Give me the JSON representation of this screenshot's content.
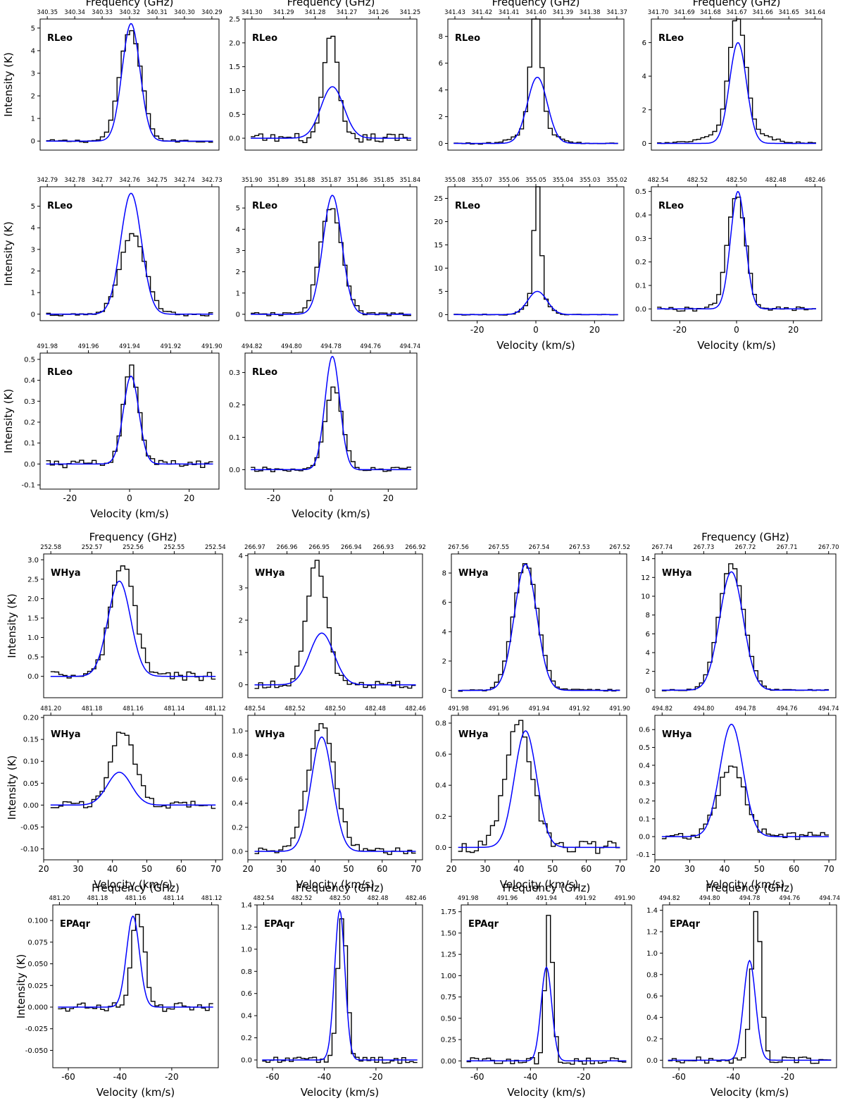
{
  "labels": {
    "freq": "Frequency (GHz)",
    "vel": "Velocity (km/s)",
    "int": "Intensity (K)"
  },
  "colors": {
    "data": "#000000",
    "fit": "#0000ff"
  },
  "chart_data": [
    {
      "type": "line",
      "source": "RLeo",
      "xlim": [
        -30,
        30
      ],
      "ylim": [
        -0.4,
        5.4
      ],
      "yticks": [
        0,
        1,
        2,
        3,
        4,
        5
      ],
      "freq_ticks": [
        "340.35",
        "340.34",
        "340.33",
        "340.32",
        "340.31",
        "340.30",
        "340.29"
      ],
      "freq_title": true,
      "xaxis_label": false,
      "xticks": [],
      "ylabel": true,
      "fit": {
        "amp": 5.2,
        "center": 0.5,
        "sigma": 3.0
      },
      "obs": {
        "amp": 4.9,
        "center": 0.3,
        "sigma": 3.6,
        "noise": 0.06
      }
    },
    {
      "type": "line",
      "source": "RLeo",
      "xlim": [
        -30,
        30
      ],
      "ylim": [
        -0.25,
        2.5
      ],
      "yticks": [
        0.0,
        0.5,
        1.0,
        1.5,
        2.0,
        2.5
      ],
      "freq_ticks": [
        "341.30",
        "341.29",
        "341.28",
        "341.27",
        "341.26",
        "341.25"
      ],
      "freq_title": true,
      "xaxis_label": false,
      "xticks": [],
      "ylabel": false,
      "fit": {
        "amp": 1.08,
        "center": 0.5,
        "sigma": 4.0
      },
      "obs": {
        "amp": 2.2,
        "center": 0.0,
        "sigma": 2.4,
        "noise": 0.1
      }
    },
    {
      "type": "line",
      "source": "RLeo",
      "xlim": [
        -30,
        30
      ],
      "ylim": [
        -0.5,
        9.3
      ],
      "yticks": [
        0,
        2,
        4,
        6,
        8
      ],
      "freq_ticks": [
        "341.43",
        "341.42",
        "341.41",
        "341.40",
        "341.39",
        "341.38",
        "341.37"
      ],
      "freq_title": true,
      "xaxis_label": false,
      "xticks": [],
      "ylabel": false,
      "fit": {
        "amp": 4.95,
        "center": 0.5,
        "sigma": 3.4
      },
      "obs": {
        "amp": 8.8,
        "center": 0.0,
        "sigma": 1.8,
        "wing": 1.3,
        "noise": 0.06
      }
    },
    {
      "type": "line",
      "source": "RLeo",
      "xlim": [
        -30,
        30
      ],
      "ylim": [
        -0.4,
        7.4
      ],
      "yticks": [
        0,
        2,
        4,
        6
      ],
      "freq_ticks": [
        "341.70",
        "341.69",
        "341.68",
        "341.67",
        "341.66",
        "341.65",
        "341.64"
      ],
      "freq_title": true,
      "xaxis_label": false,
      "xticks": [],
      "ylabel": false,
      "fit": {
        "amp": 6.0,
        "center": 0.5,
        "sigma": 3.0
      },
      "obs": {
        "amp": 6.9,
        "center": 0.3,
        "sigma": 2.9,
        "wing": 0.8,
        "noise": 0.06
      }
    },
    {
      "type": "line",
      "source": "RLeo",
      "xlim": [
        -30,
        30
      ],
      "ylim": [
        -0.3,
        5.9
      ],
      "yticks": [
        0,
        1,
        2,
        3,
        4,
        5
      ],
      "freq_ticks": [
        "342.79",
        "342.78",
        "342.77",
        "342.76",
        "342.75",
        "342.74",
        "342.73"
      ],
      "freq_title": false,
      "xaxis_label": false,
      "xticks": [],
      "ylabel": true,
      "fit": {
        "amp": 5.6,
        "center": 0.5,
        "sigma": 3.5
      },
      "obs": {
        "amp": 3.7,
        "center": 1.0,
        "sigma": 4.2,
        "noise": 0.08
      }
    },
    {
      "type": "line",
      "source": "RLeo",
      "xlim": [
        -30,
        30
      ],
      "ylim": [
        -0.3,
        6.0
      ],
      "yticks": [
        0,
        1,
        2,
        3,
        4,
        5
      ],
      "freq_ticks": [
        "351.90",
        "351.89",
        "351.88",
        "351.87",
        "351.86",
        "351.85",
        "351.84"
      ],
      "freq_title": false,
      "xaxis_label": false,
      "xticks": [],
      "ylabel": false,
      "fit": {
        "amp": 5.6,
        "center": 0.5,
        "sigma": 3.3
      },
      "obs": {
        "amp": 5.0,
        "center": 0.0,
        "sigma": 3.9,
        "noise": 0.08
      }
    },
    {
      "type": "line",
      "source": "RLeo",
      "xlim": [
        -30,
        30
      ],
      "ylim": [
        -1.3,
        27.5
      ],
      "yticks": [
        0,
        5,
        10,
        15,
        20,
        25
      ],
      "freq_ticks": [
        "355.08",
        "355.07",
        "355.06",
        "355.05",
        "355.04",
        "355.03",
        "355.02"
      ],
      "freq_title": false,
      "xaxis_label": true,
      "xticks": [
        -20,
        0,
        20
      ],
      "ylabel": false,
      "fit": {
        "amp": 5.0,
        "center": 0.5,
        "sigma": 3.3
      },
      "obs": {
        "amp": 26.0,
        "center": 0.5,
        "sigma": 1.1,
        "wing": 4.0,
        "noise": 0.1
      }
    },
    {
      "type": "line",
      "source": "RLeo",
      "xlim": [
        -30,
        30
      ],
      "ylim": [
        -0.05,
        0.52
      ],
      "yticks": [
        0.0,
        0.1,
        0.2,
        0.3,
        0.4,
        0.5
      ],
      "freq_ticks": [
        "482.54",
        "482.52",
        "482.50",
        "482.48",
        "482.46"
      ],
      "freq_title": false,
      "xaxis_label": true,
      "xticks": [
        -20,
        0,
        20
      ],
      "ylabel": false,
      "fit": {
        "amp": 0.5,
        "center": 0.5,
        "sigma": 2.6
      },
      "obs": {
        "amp": 0.48,
        "center": 0.0,
        "sigma": 3.2,
        "noise": 0.02
      }
    },
    {
      "type": "line",
      "source": "RLeo",
      "xlim": [
        -30,
        30
      ],
      "ylim": [
        -0.12,
        0.53
      ],
      "yticks": [
        -0.1,
        0.0,
        0.1,
        0.2,
        0.3,
        0.4,
        0.5
      ],
      "freq_ticks": [
        "491.98",
        "491.96",
        "491.94",
        "491.92",
        "491.90"
      ],
      "freq_title": false,
      "xaxis_label": true,
      "xticks": [
        -20,
        0,
        20
      ],
      "ylabel": true,
      "fit": {
        "amp": 0.42,
        "center": 0.5,
        "sigma": 2.6
      },
      "obs": {
        "amp": 0.46,
        "center": 0.5,
        "sigma": 2.6,
        "noise": 0.04
      }
    },
    {
      "type": "line",
      "source": "RLeo",
      "xlim": [
        -30,
        30
      ],
      "ylim": [
        -0.06,
        0.36
      ],
      "yticks": [
        0.0,
        0.1,
        0.2,
        0.3
      ],
      "freq_ticks": [
        "494.82",
        "494.80",
        "494.78",
        "494.76",
        "494.74"
      ],
      "freq_title": false,
      "xaxis_label": true,
      "xticks": [
        -20,
        0,
        20
      ],
      "ylabel": false,
      "fit": {
        "amp": 0.35,
        "center": 0.5,
        "sigma": 2.6
      },
      "obs": {
        "amp": 0.25,
        "center": 1.0,
        "sigma": 3.0,
        "noise": 0.03
      }
    },
    {
      "type": "line",
      "source": "WHya",
      "xlim": [
        20,
        72
      ],
      "ylim": [
        -0.55,
        3.15
      ],
      "yticks": [
        0.0,
        0.5,
        1.0,
        1.5,
        2.0,
        2.5,
        3.0
      ],
      "freq_ticks": [
        "252.58",
        "252.57",
        "252.56",
        "252.55",
        "252.54"
      ],
      "freq_title": true,
      "xaxis_label": false,
      "xticks": [],
      "ylabel": true,
      "fit": {
        "amp": 2.45,
        "center": 42.0,
        "sigma": 3.3
      },
      "obs": {
        "amp": 2.9,
        "center": 43.0,
        "sigma": 3.5,
        "noise": 0.12
      }
    },
    {
      "type": "line",
      "source": "WHya",
      "xlim": [
        20,
        72
      ],
      "ylim": [
        -0.4,
        4.05
      ],
      "yticks": [
        0,
        1,
        2,
        3,
        4
      ],
      "freq_ticks": [
        "266.97",
        "266.96",
        "266.95",
        "266.94",
        "266.93",
        "266.92"
      ],
      "freq_title": false,
      "xaxis_label": false,
      "xticks": [],
      "ylabel": false,
      "fit": {
        "amp": 1.6,
        "center": 42.0,
        "sigma": 3.6
      },
      "obs": {
        "amp": 3.75,
        "center": 40.5,
        "sigma": 3.0,
        "noise": 0.12
      }
    },
    {
      "type": "line",
      "source": "WHya",
      "xlim": [
        20,
        72
      ],
      "ylim": [
        -0.5,
        9.3
      ],
      "yticks": [
        0,
        2,
        4,
        6,
        8
      ],
      "freq_ticks": [
        "267.56",
        "267.55",
        "267.54",
        "267.53",
        "267.52"
      ],
      "freq_title": false,
      "xaxis_label": false,
      "xticks": [],
      "ylabel": false,
      "fit": {
        "amp": 8.6,
        "center": 42.0,
        "sigma": 3.3
      },
      "obs": {
        "amp": 8.7,
        "center": 42.0,
        "sigma": 3.6,
        "noise": 0.07
      }
    },
    {
      "type": "line",
      "source": "WHya",
      "xlim": [
        20,
        72
      ],
      "ylim": [
        -0.8,
        14.5
      ],
      "yticks": [
        0,
        2,
        4,
        6,
        8,
        10,
        12,
        14
      ],
      "freq_ticks": [
        "267.74",
        "267.73",
        "267.72",
        "267.71",
        "267.70"
      ],
      "freq_title": true,
      "xaxis_label": false,
      "xticks": [],
      "ylabel": false,
      "fit": {
        "amp": 12.6,
        "center": 42.0,
        "sigma": 3.4
      },
      "obs": {
        "amp": 13.4,
        "center": 42.0,
        "sigma": 3.6,
        "noise": 0.08
      }
    },
    {
      "type": "line",
      "source": "WHya",
      "xlim": [
        20,
        72
      ],
      "ylim": [
        -0.125,
        0.205
      ],
      "yticks": [
        -0.1,
        -0.05,
        0.0,
        0.05,
        0.1,
        0.15,
        0.2
      ],
      "freq_ticks": [
        "481.20",
        "481.18",
        "481.16",
        "481.14",
        "481.12"
      ],
      "freq_title": false,
      "xaxis_label": true,
      "xticks": [
        20,
        30,
        40,
        50,
        60,
        70
      ],
      "ylabel": true,
      "fit": {
        "amp": 0.075,
        "center": 42.0,
        "sigma": 3.5
      },
      "obs": {
        "amp": 0.17,
        "center": 43.0,
        "sigma": 3.5,
        "noise": 0.05
      }
    },
    {
      "type": "line",
      "source": "WHya",
      "xlim": [
        20,
        72
      ],
      "ylim": [
        -0.07,
        1.13
      ],
      "yticks": [
        0.0,
        0.2,
        0.4,
        0.6,
        0.8,
        1.0
      ],
      "freq_ticks": [
        "482.54",
        "482.52",
        "482.50",
        "482.48",
        "482.46"
      ],
      "freq_title": false,
      "xaxis_label": true,
      "xticks": [
        20,
        30,
        40,
        50,
        60,
        70
      ],
      "ylabel": false,
      "fit": {
        "amp": 0.95,
        "center": 42.0,
        "sigma": 3.2
      },
      "obs": {
        "amp": 1.05,
        "center": 42.0,
        "sigma": 4.0,
        "noise": 0.03
      }
    },
    {
      "type": "line",
      "source": "WHya",
      "xlim": [
        20,
        72
      ],
      "ylim": [
        -0.08,
        0.85
      ],
      "yticks": [
        0.0,
        0.2,
        0.4,
        0.6,
        0.8
      ],
      "freq_ticks": [
        "491.98",
        "491.96",
        "491.94",
        "491.92",
        "491.90"
      ],
      "freq_title": false,
      "xaxis_label": true,
      "xticks": [
        20,
        30,
        40,
        50,
        60,
        70
      ],
      "ylabel": false,
      "fit": {
        "amp": 0.75,
        "center": 42.0,
        "sigma": 3.3
      },
      "obs": {
        "amp": 0.78,
        "center": 40.0,
        "sigma": 4.0,
        "noise": 0.06
      }
    },
    {
      "type": "line",
      "source": "WHya",
      "xlim": [
        20,
        72
      ],
      "ylim": [
        -0.13,
        0.68
      ],
      "yticks": [
        -0.1,
        0.0,
        0.1,
        0.2,
        0.3,
        0.4,
        0.5,
        0.6
      ],
      "freq_ticks": [
        "494.82",
        "494.80",
        "494.78",
        "494.76",
        "494.74"
      ],
      "freq_title": false,
      "xaxis_label": true,
      "xticks": [
        20,
        30,
        40,
        50,
        60,
        70
      ],
      "ylabel": false,
      "fit": {
        "amp": 0.63,
        "center": 42.0,
        "sigma": 3.3
      },
      "obs": {
        "amp": 0.4,
        "center": 42.0,
        "sigma": 3.8,
        "noise": 0.06
      }
    },
    {
      "type": "line",
      "source": "EPAqr",
      "xlim": [
        -66,
        -2
      ],
      "ylim": [
        -0.07,
        0.118
      ],
      "yticks": [
        -0.05,
        -0.025,
        0.0,
        0.025,
        0.05,
        0.075,
        0.1
      ],
      "freq_ticks": [
        "481.20",
        "481.18",
        "481.16",
        "481.14",
        "481.12"
      ],
      "freq_title": true,
      "xaxis_label": true,
      "xticks": [
        -60,
        -40,
        -20
      ],
      "ylabel": true,
      "fit": {
        "amp": 0.105,
        "center": -35.0,
        "sigma": 2.5
      },
      "obs": {
        "amp": 0.11,
        "center": -33.0,
        "sigma": 2.5,
        "noise": 0.045
      }
    },
    {
      "type": "line",
      "source": "EPAqr",
      "xlim": [
        -66,
        -2
      ],
      "ylim": [
        -0.07,
        1.4
      ],
      "yticks": [
        0.0,
        0.2,
        0.4,
        0.6,
        0.8,
        1.0,
        1.2,
        1.4
      ],
      "freq_ticks": [
        "482.54",
        "482.52",
        "482.50",
        "482.48",
        "482.46"
      ],
      "freq_title": true,
      "xaxis_label": true,
      "xticks": [
        -60,
        -40,
        -20
      ],
      "ylabel": false,
      "fit": {
        "amp": 1.35,
        "center": -34.0,
        "sigma": 2.0
      },
      "obs": {
        "amp": 1.3,
        "center": -33.0,
        "sigma": 1.8,
        "noise": 0.03
      }
    },
    {
      "type": "line",
      "source": "EPAqr",
      "xlim": [
        -66,
        -2
      ],
      "ylim": [
        -0.08,
        1.83
      ],
      "yticks": [
        0.0,
        0.25,
        0.5,
        0.75,
        1.0,
        1.25,
        1.5,
        1.75
      ],
      "freq_ticks": [
        "491.98",
        "491.96",
        "491.94",
        "491.92",
        "491.90"
      ],
      "freq_title": true,
      "xaxis_label": true,
      "xticks": [
        -60,
        -40,
        -20
      ],
      "ylabel": false,
      "fit": {
        "amp": 1.1,
        "center": -34.0,
        "sigma": 2.0
      },
      "obs": {
        "amp": 1.75,
        "center": -33.0,
        "sigma": 1.4,
        "noise": 0.04
      }
    },
    {
      "type": "line",
      "source": "EPAqr",
      "xlim": [
        -66,
        -2
      ],
      "ylim": [
        -0.07,
        1.45
      ],
      "yticks": [
        0.0,
        0.2,
        0.4,
        0.6,
        0.8,
        1.0,
        1.2,
        1.4
      ],
      "freq_ticks": [
        "494.82",
        "494.80",
        "494.78",
        "494.76",
        "494.74"
      ],
      "freq_title": true,
      "xaxis_label": true,
      "xticks": [
        -60,
        -40,
        -20
      ],
      "ylabel": false,
      "fit": {
        "amp": 0.93,
        "center": -34.0,
        "sigma": 2.2
      },
      "obs": {
        "amp": 1.38,
        "center": -31.5,
        "sigma": 1.8,
        "noise": 0.03
      }
    }
  ]
}
